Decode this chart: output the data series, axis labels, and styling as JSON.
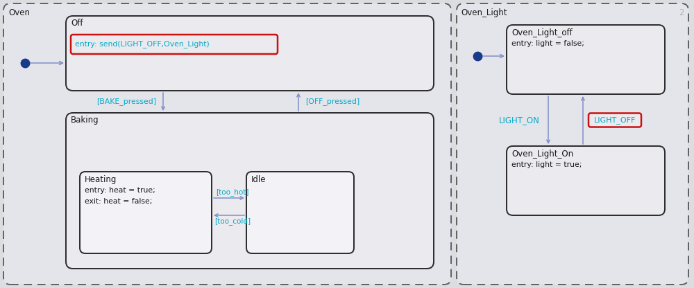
{
  "bg_color": "#dcdde0",
  "panel_fill": "#e2e3e8",
  "state_fill": "#eeeef4",
  "state_fill_inner": "#f3f3f8",
  "border_dark": "#2a2a2a",
  "border_dashed": "#666666",
  "arrow_color": "#8090c8",
  "cyan_text": "#00aac8",
  "red_color": "#cc1111",
  "gray_text": "#b0b0b0",
  "dark_text": "#1a1a1a",
  "dot_color": "#1a3a8a",
  "oven_label": "Oven",
  "oven_light_label": "Oven_Light",
  "oven_light_number": "2",
  "off_title": "Off",
  "off_entry": "entry: send(LIGHT_OFF,Oven_Light)",
  "baking_label": "Baking",
  "heating_title": "Heating",
  "heating_line1": "entry: heat = true;",
  "heating_line2": "exit: heat = false;",
  "idle_title": "Idle",
  "bake_pressed": "[BAKE_pressed]",
  "off_pressed": "[OFF_pressed]",
  "too_hot": "[too_hot]",
  "too_cold": "[too_cold]",
  "ol_off_title": "Oven_Light_off",
  "ol_off_entry": "entry: light = false;",
  "ol_on_title": "Oven_Light_On",
  "ol_on_entry": "entry: light = true;",
  "light_on": "LIGHT_ON",
  "light_off": "LIGHT_OFF"
}
